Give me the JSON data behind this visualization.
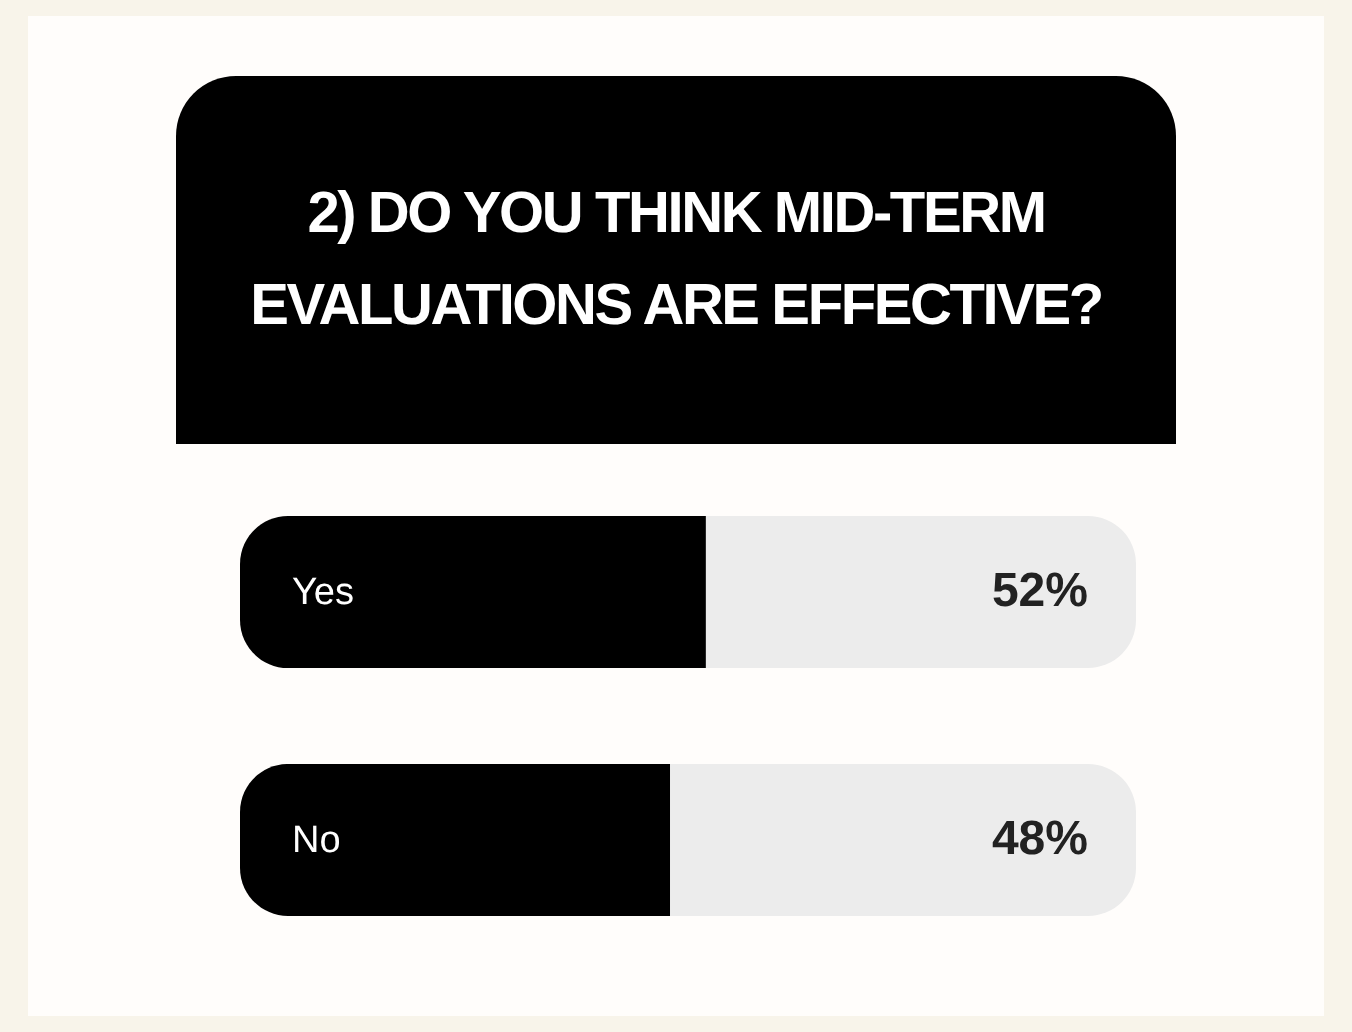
{
  "chart_data": {
    "type": "bar",
    "orientation": "horizontal",
    "title": "2) DO YOU THINK MID-TERM EVALUATIONS ARE EFFECTIVE?",
    "categories": [
      "Yes",
      "No"
    ],
    "values": [
      52,
      48
    ],
    "value_labels": [
      "52%",
      "48%"
    ],
    "color": "#000000",
    "xlim": [
      0,
      100
    ],
    "tick_labels": false
  }
}
